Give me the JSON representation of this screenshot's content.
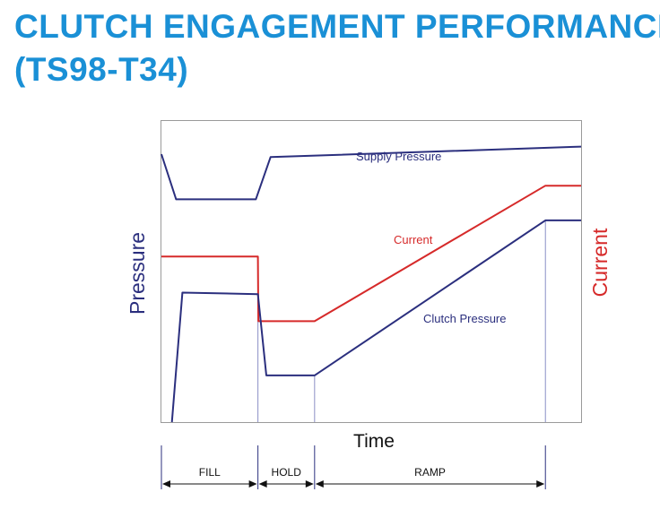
{
  "title": {
    "line1": "CLUTCH ENGAGEMENT PERFORMANCE",
    "line2": "(TS98-T34)"
  },
  "colors": {
    "title": "#1a90d6",
    "pressure": "#2b2f7e",
    "current": "#d62a2a",
    "frame": "#9a9a9a",
    "phase_line": "#8a8fc6"
  },
  "chart_data": {
    "type": "line",
    "title": "",
    "xlabel": "Time",
    "ylabel_left": "Pressure",
    "ylabel_right": "Current",
    "xlim": [
      0,
      100
    ],
    "ylim": [
      0,
      100
    ],
    "phases": [
      {
        "label": "FILL",
        "start": 0,
        "end": 23
      },
      {
        "label": "HOLD",
        "start": 23,
        "end": 36.5
      },
      {
        "label": "RAMP",
        "start": 36.5,
        "end": 91.5
      }
    ],
    "series": [
      {
        "name": "Supply Pressure",
        "color": "#2b2f7e",
        "x": [
          0,
          3.5,
          22.5,
          26,
          100
        ],
        "y": [
          89,
          74,
          74,
          88,
          91.5
        ]
      },
      {
        "name": "Current",
        "color": "#d62a2a",
        "x": [
          0,
          23,
          23.1,
          36.5,
          91.5,
          100
        ],
        "y": [
          55,
          55,
          33.5,
          33.5,
          78.5,
          78.5
        ]
      },
      {
        "name": "Clutch Pressure",
        "color": "#2b2f7e",
        "x": [
          2.5,
          5,
          23,
          25,
          36.5,
          91.5,
          100
        ],
        "y": [
          0,
          43,
          42.5,
          15.5,
          15.5,
          67,
          67
        ]
      }
    ]
  }
}
